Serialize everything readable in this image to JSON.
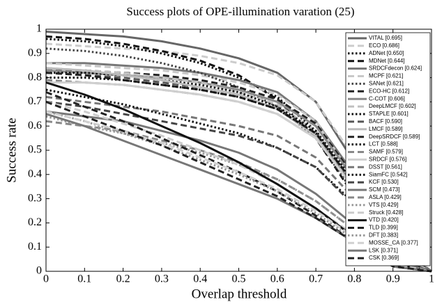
{
  "chart_data": {
    "type": "line",
    "title": "Success plots of OPE-illumination varation (25)",
    "xlabel": "Overlap threshold",
    "ylabel": "Success rate",
    "x": [
      0,
      0.1,
      0.2,
      0.3,
      0.4,
      0.5,
      0.6,
      0.7,
      0.8,
      0.9,
      1
    ],
    "xlim": [
      0,
      1
    ],
    "ylim": [
      0,
      1
    ],
    "xticks": [
      0,
      0.1,
      0.2,
      0.3,
      0.4,
      0.5,
      0.6,
      0.7,
      0.8,
      0.9,
      1
    ],
    "yticks": [
      0,
      0.1,
      0.2,
      0.3,
      0.4,
      0.5,
      0.6,
      0.7,
      0.8,
      0.9,
      1
    ],
    "legend": "upper right",
    "series": [
      {
        "name": "VITAL [0.695]",
        "color": "#666666",
        "linestyle": "solid",
        "values": [
          0.99,
          0.98,
          0.97,
          0.95,
          0.92,
          0.88,
          0.82,
          0.7,
          0.45,
          0.12,
          0
        ]
      },
      {
        "name": "ECO [0.686]",
        "color": "#cccccc",
        "linestyle": "dashed",
        "values": [
          0.94,
          0.93,
          0.92,
          0.91,
          0.89,
          0.86,
          0.81,
          0.7,
          0.47,
          0.12,
          0
        ]
      },
      {
        "name": "ADNet [0.650]",
        "color": "#111111",
        "linestyle": "dotted",
        "values": [
          0.96,
          0.95,
          0.93,
          0.9,
          0.86,
          0.8,
          0.72,
          0.58,
          0.33,
          0.06,
          0
        ]
      },
      {
        "name": "MDNet [0.644]",
        "color": "#111111",
        "linestyle": "dashed",
        "values": [
          0.97,
          0.96,
          0.94,
          0.91,
          0.87,
          0.81,
          0.71,
          0.55,
          0.31,
          0.05,
          0
        ]
      },
      {
        "name": "SRDCFdecon [0.624]",
        "color": "#777777",
        "linestyle": "solid",
        "values": [
          0.86,
          0.86,
          0.85,
          0.84,
          0.82,
          0.79,
          0.74,
          0.62,
          0.4,
          0.1,
          0
        ]
      },
      {
        "name": "MCPF [0.621]",
        "color": "#c8c8c8",
        "linestyle": "dashed",
        "values": [
          0.86,
          0.85,
          0.84,
          0.83,
          0.81,
          0.78,
          0.73,
          0.62,
          0.38,
          0.08,
          0
        ]
      },
      {
        "name": "SANet [0.621]",
        "color": "#444444",
        "linestyle": "dotted",
        "values": [
          0.92,
          0.91,
          0.89,
          0.86,
          0.82,
          0.76,
          0.68,
          0.55,
          0.32,
          0.06,
          0
        ]
      },
      {
        "name": "ECO-HC [0.612]",
        "color": "#222222",
        "linestyle": "dashed",
        "values": [
          0.83,
          0.83,
          0.82,
          0.81,
          0.79,
          0.76,
          0.71,
          0.61,
          0.39,
          0.09,
          0
        ]
      },
      {
        "name": "C-COT [0.606]",
        "color": "#8a8a8a",
        "linestyle": "solid",
        "values": [
          0.83,
          0.82,
          0.81,
          0.8,
          0.78,
          0.75,
          0.7,
          0.6,
          0.38,
          0.08,
          0
        ]
      },
      {
        "name": "DeepLMCF [0.602]",
        "color": "#c0c0c0",
        "linestyle": "dashed",
        "values": [
          0.84,
          0.83,
          0.82,
          0.8,
          0.78,
          0.74,
          0.69,
          0.58,
          0.36,
          0.07,
          0
        ]
      },
      {
        "name": "STAPLE [0.601]",
        "color": "#111111",
        "linestyle": "dotted",
        "values": [
          0.82,
          0.82,
          0.81,
          0.79,
          0.77,
          0.74,
          0.68,
          0.58,
          0.37,
          0.08,
          0
        ]
      },
      {
        "name": "BACF [0.590]",
        "color": "#555555",
        "linestyle": "dashed",
        "values": [
          0.82,
          0.81,
          0.8,
          0.78,
          0.76,
          0.73,
          0.67,
          0.57,
          0.36,
          0.08,
          0
        ]
      },
      {
        "name": "LMCF [0.589]",
        "color": "#bbbbbb",
        "linestyle": "solid",
        "values": [
          0.84,
          0.83,
          0.81,
          0.79,
          0.76,
          0.73,
          0.67,
          0.56,
          0.35,
          0.07,
          0
        ]
      },
      {
        "name": "DeepSRDCF [0.589]",
        "color": "#222222",
        "linestyle": "dashed",
        "values": [
          0.82,
          0.81,
          0.79,
          0.77,
          0.75,
          0.72,
          0.67,
          0.57,
          0.36,
          0.08,
          0
        ]
      },
      {
        "name": "LCT [0.588]",
        "color": "#111111",
        "linestyle": "dotted",
        "values": [
          0.8,
          0.8,
          0.79,
          0.77,
          0.75,
          0.72,
          0.67,
          0.57,
          0.36,
          0.07,
          0
        ]
      },
      {
        "name": "SAMF [0.579]",
        "color": "#888888",
        "linestyle": "dashed",
        "values": [
          0.79,
          0.78,
          0.77,
          0.75,
          0.73,
          0.7,
          0.65,
          0.55,
          0.35,
          0.07,
          0
        ]
      },
      {
        "name": "SRDCF [0.576]",
        "color": "#cfcfcf",
        "linestyle": "solid",
        "values": [
          0.78,
          0.78,
          0.77,
          0.75,
          0.73,
          0.7,
          0.65,
          0.55,
          0.34,
          0.07,
          0
        ]
      },
      {
        "name": "DSST [0.561]",
        "color": "#777777",
        "linestyle": "dashed",
        "values": [
          0.72,
          0.7,
          0.68,
          0.66,
          0.63,
          0.6,
          0.56,
          0.47,
          0.3,
          0.06,
          0
        ]
      },
      {
        "name": "SiamFC [0.542]",
        "color": "#111111",
        "linestyle": "dotted",
        "values": [
          0.75,
          0.72,
          0.69,
          0.65,
          0.61,
          0.57,
          0.51,
          0.43,
          0.28,
          0.05,
          0
        ]
      },
      {
        "name": "KCF [0.530]",
        "color": "#444444",
        "linestyle": "dashed",
        "values": [
          0.7,
          0.68,
          0.65,
          0.62,
          0.59,
          0.56,
          0.51,
          0.43,
          0.27,
          0.05,
          0
        ]
      },
      {
        "name": "SCM [0.473]",
        "color": "#777777",
        "linestyle": "solid",
        "values": [
          0.66,
          0.64,
          0.62,
          0.58,
          0.54,
          0.49,
          0.42,
          0.32,
          0.19,
          0.04,
          0
        ]
      },
      {
        "name": "ASLA [0.429]",
        "color": "#888888",
        "linestyle": "dashed",
        "values": [
          0.62,
          0.6,
          0.58,
          0.54,
          0.5,
          0.45,
          0.38,
          0.29,
          0.17,
          0.03,
          0
        ]
      },
      {
        "name": "VTS [0.429]",
        "color": "#999999",
        "linestyle": "dotted",
        "values": [
          0.64,
          0.6,
          0.57,
          0.53,
          0.49,
          0.44,
          0.38,
          0.29,
          0.17,
          0.03,
          0
        ]
      },
      {
        "name": "Struck [0.428]",
        "color": "#cccccc",
        "linestyle": "dashed",
        "values": [
          0.7,
          0.66,
          0.61,
          0.56,
          0.5,
          0.44,
          0.36,
          0.26,
          0.15,
          0.03,
          0
        ]
      },
      {
        "name": "VTD [0.420]",
        "color": "#111111",
        "linestyle": "solid",
        "values": [
          0.78,
          0.73,
          0.67,
          0.6,
          0.53,
          0.45,
          0.36,
          0.26,
          0.14,
          0.03,
          0
        ]
      },
      {
        "name": "TLD [0.399]",
        "color": "#222222",
        "linestyle": "dashed",
        "values": [
          0.74,
          0.68,
          0.62,
          0.55,
          0.48,
          0.41,
          0.33,
          0.23,
          0.12,
          0.02,
          0
        ]
      },
      {
        "name": "DFT [0.383]",
        "color": "#999999",
        "linestyle": "dotted",
        "values": [
          0.66,
          0.62,
          0.57,
          0.52,
          0.46,
          0.4,
          0.33,
          0.24,
          0.13,
          0.03,
          0
        ]
      },
      {
        "name": "MOSSE_CA [0.377]",
        "color": "#d0d0d0",
        "linestyle": "dashed",
        "values": [
          0.66,
          0.62,
          0.58,
          0.53,
          0.47,
          0.41,
          0.34,
          0.25,
          0.14,
          0.03,
          0
        ]
      },
      {
        "name": "LSK [0.371]",
        "color": "#777777",
        "linestyle": "solid",
        "values": [
          0.65,
          0.6,
          0.54,
          0.48,
          0.42,
          0.36,
          0.3,
          0.22,
          0.12,
          0.02,
          0
        ]
      },
      {
        "name": "CSK [0.369]",
        "color": "#222222",
        "linestyle": "dashed",
        "values": [
          0.7,
          0.64,
          0.58,
          0.52,
          0.45,
          0.38,
          0.31,
          0.22,
          0.12,
          0.02,
          0
        ]
      }
    ]
  }
}
